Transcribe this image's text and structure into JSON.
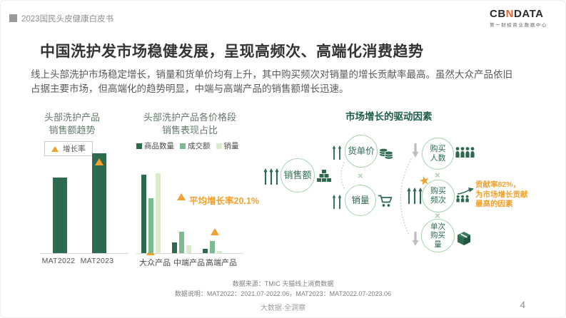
{
  "page": {
    "breadcrumb": "2023国民头皮健康白皮书",
    "logo": {
      "cb": "CB",
      "n": "N",
      "data": "DATA",
      "subtitle": "第一财经商业数据中心"
    },
    "title": "中国洗护发市场稳健发展，呈现高频次、高端化消费趋势",
    "intro": "线上头部洗护市场稳定增长，销量和货单价均有上升，其中购买频次对销量的增长贡献率最高。虽然大众产品依旧\n占据主要市场，但高端化的趋势明显，中端与高端产品的销售额增长迅速。",
    "notes": {
      "source": "数据来源：TMIC 天猫线上消费数据",
      "definition": "数据说明：MAT2022：2021.07-2022.06，MAT2023：MAT2022.07-2023.06"
    },
    "footer_brand": "大数据·全洞察",
    "page_number": "4"
  },
  "colors": {
    "primary_green": "#2D6A50",
    "mid_green": "#7CBA8F",
    "light_green": "#D9EBC9",
    "accent_orange": "#F2A02E",
    "circle_border": "#A7D4AF",
    "logo_orange": "#E8622C"
  },
  "chart_data": [
    {
      "type": "bar",
      "title": "头部洗护产品\n销售额趋势",
      "categories": [
        "MAT2022",
        "MAT2023"
      ],
      "values": [
        76,
        100
      ],
      "ylim": [
        0,
        100
      ],
      "legend": [
        "增长率"
      ],
      "legend_position": "top",
      "grid": false,
      "bar_color": "#2D6A50",
      "marker_color": "#F2A02E",
      "growth_marker_on": "MAT2023"
    },
    {
      "type": "bar",
      "title": "头部洗护产品各价格段\n销售表现占比",
      "categories": [
        "大众产品",
        "中端产品",
        "高端产品"
      ],
      "series": [
        {
          "name": "商品数量",
          "color": "#2D6A50",
          "values": [
            98,
            13,
            5
          ]
        },
        {
          "name": "成交额",
          "color": "#7CBA8F",
          "values": [
            69,
            27,
            15
          ]
        },
        {
          "name": "销量",
          "color": "#D9EBC9",
          "values": [
            100,
            10,
            3
          ]
        }
      ],
      "ylim": [
        0,
        100
      ],
      "grid": false,
      "legend_position": "top",
      "annotation": "平均增长率20.1%",
      "growth_markers": [
        {
          "category": "大众产品",
          "position": "baseline-low"
        },
        {
          "category": "高端产品",
          "position": "above-bars"
        }
      ]
    }
  ],
  "drivers": {
    "title": "市场增长的驱动因素",
    "multiply": "×",
    "star": "★",
    "nodes": {
      "sales": {
        "label": "销售额",
        "icon": "blocks-pyramid-icon",
        "trend": "up"
      },
      "price": {
        "label": "货单价",
        "icon": "coins-icon",
        "trend": "up"
      },
      "volume": {
        "label": "销量",
        "icon": "cart-icon",
        "trend": "up"
      },
      "buyers": {
        "label": "购买\n人数",
        "icon": "people-icon",
        "trend": "down"
      },
      "frequency": {
        "label": "购买\n频次",
        "icon": "people-growth-icon",
        "trend": "up",
        "highlighted": true
      },
      "quantity": {
        "label": "单次\n购买\n量",
        "icon": "package-icon",
        "trend": "down"
      }
    },
    "callout": "贡献率82%，\n为市场增长贡献\n最高的因素"
  }
}
